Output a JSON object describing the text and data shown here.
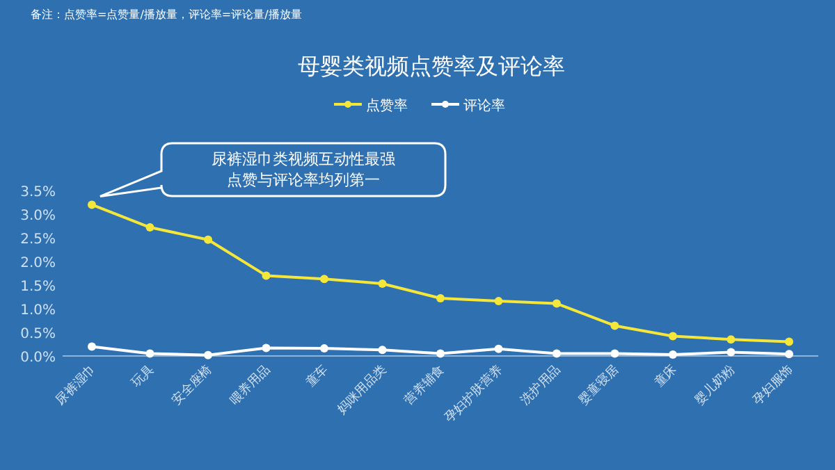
{
  "chart_data": {
    "type": "line",
    "title": "母婴类视频点赞率及评论率",
    "categories": [
      "尿裤湿巾",
      "玩具",
      "安全座椅",
      "喂养用品",
      "童车",
      "妈咪用品类",
      "营养辅食",
      "孕妇护肤营养",
      "洗护用品",
      "婴童寝居",
      "童床",
      "婴儿奶粉",
      "孕妇服饰"
    ],
    "series": [
      {
        "name": "点赞率",
        "color": "#f5e63a",
        "values": [
          3.2,
          2.72,
          2.46,
          1.7,
          1.63,
          1.53,
          1.22,
          1.16,
          1.11,
          0.64,
          0.42,
          0.35,
          0.3
        ]
      },
      {
        "name": "评论率",
        "color": "#ffffff",
        "values": [
          0.2,
          0.05,
          0.02,
          0.17,
          0.16,
          0.13,
          0.05,
          0.15,
          0.05,
          0.05,
          0.03,
          0.08,
          0.04
        ]
      }
    ],
    "ylim": [
      0,
      3.5
    ],
    "yticks": [
      {
        "value": 0,
        "label": "0.0%"
      },
      {
        "value": 0.5,
        "label": "0.5%"
      },
      {
        "value": 1,
        "label": "1.0%"
      },
      {
        "value": 1.5,
        "label": "1.5%"
      },
      {
        "value": 2,
        "label": "2.0%"
      },
      {
        "value": 2.5,
        "label": "2.5%"
      },
      {
        "value": 3,
        "label": "3.0%"
      },
      {
        "value": 3.5,
        "label": "3.5%"
      }
    ],
    "annotations": [
      "备注：点赞率=点赞量/播放量，评论率=评论量/播放量",
      "尿裤湿巾类视频互动性最强",
      "点赞与评论率均列第一"
    ],
    "grid": false,
    "legend": "top",
    "marker": "circle",
    "line_style": "solid"
  }
}
